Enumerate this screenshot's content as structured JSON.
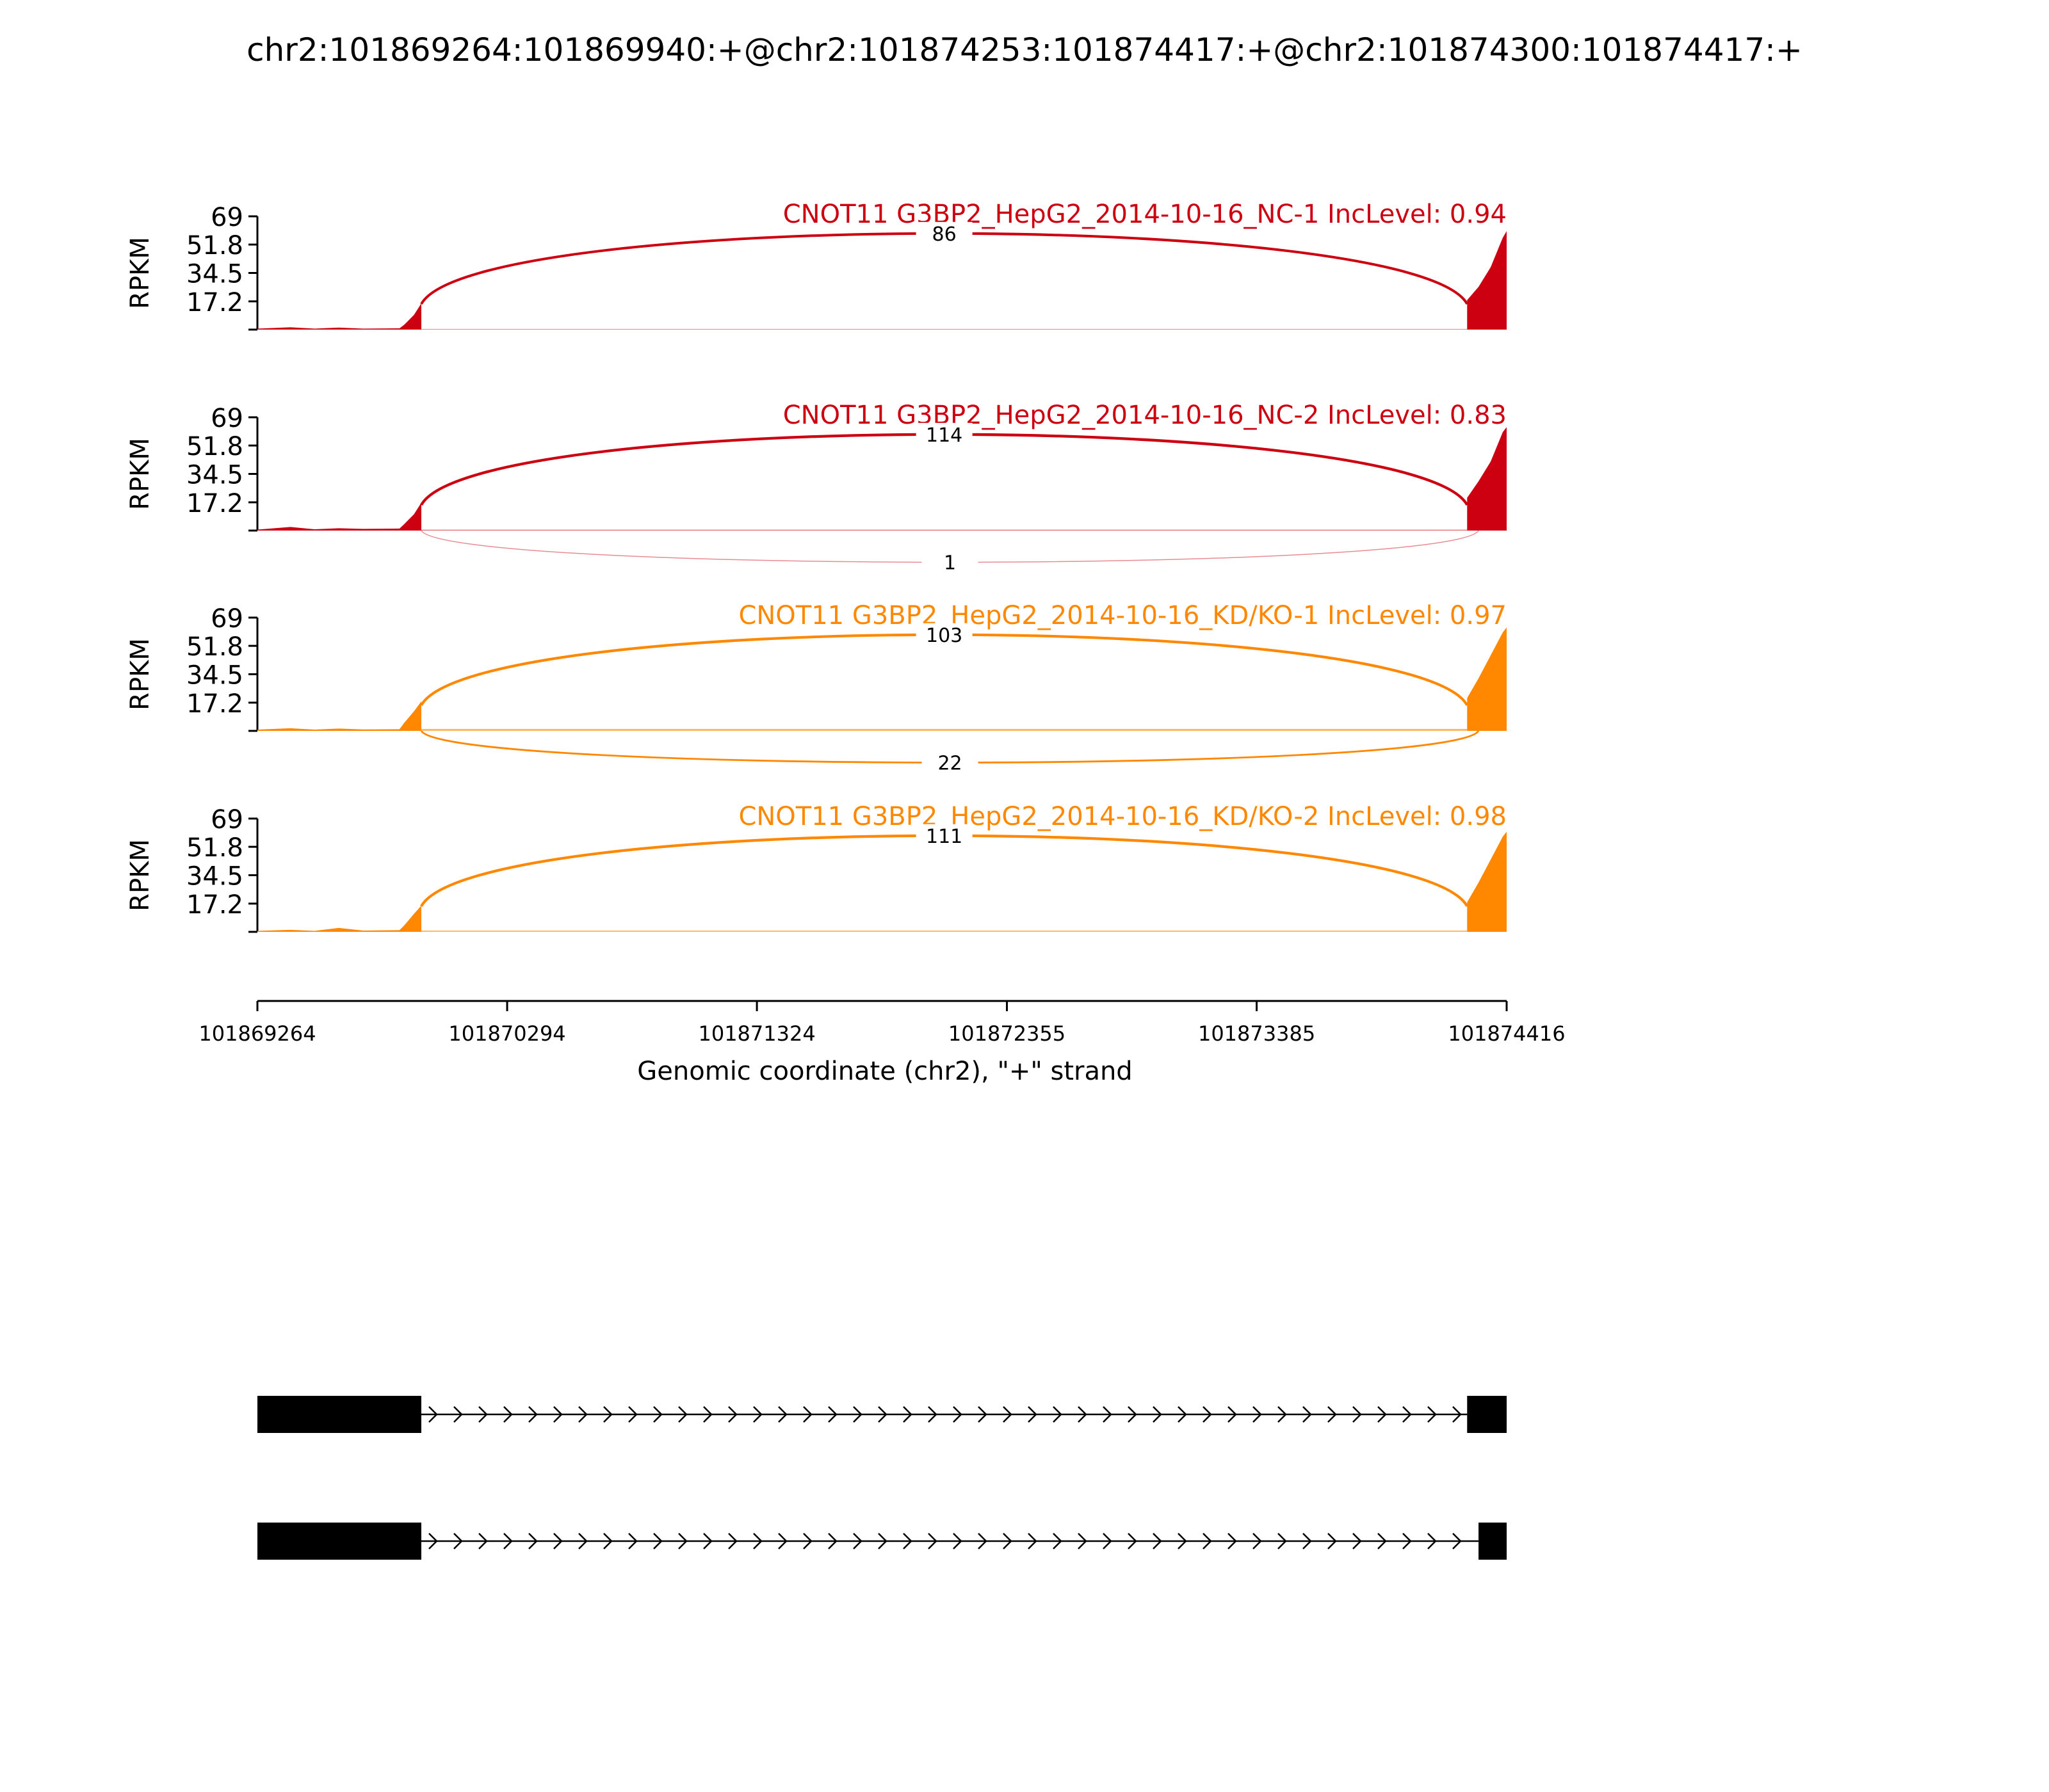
{
  "title": "chr2:101869264:101869940:+@chr2:101874253:101874417:+@chr2:101874300:101874417:+",
  "colors": {
    "nc": "#cc0011",
    "kd": "#ff8800",
    "axis": "#000000",
    "gene": "#000000"
  },
  "chart_data": {
    "type": "area",
    "ylabel": "RPKM",
    "xlabel": "Genomic coordinate (chr2), \"+\" strand",
    "ylim": [
      0,
      69
    ],
    "yticks": [
      {
        "value": 17.2,
        "label": "17.2"
      },
      {
        "value": 34.5,
        "label": "34.5"
      },
      {
        "value": 51.8,
        "label": "51.8"
      },
      {
        "value": 69,
        "label": "69"
      }
    ],
    "xlim": [
      101869264,
      101874416
    ],
    "xticks": [
      {
        "value": 101869264,
        "label": "101869264"
      },
      {
        "value": 101870294,
        "label": "101870294"
      },
      {
        "value": 101871324,
        "label": "101871324"
      },
      {
        "value": 101872355,
        "label": "101872355"
      },
      {
        "value": 101873385,
        "label": "101873385"
      },
      {
        "value": 101874416,
        "label": "101874416"
      }
    ],
    "tracks": [
      {
        "label": "CNOT11 G3BP2_HepG2_2014-10-16_NC-1 IncLevel: 0.94",
        "color_key": "nc",
        "junctions": [
          {
            "count": 86,
            "label": "86",
            "side": "above",
            "start": 101869940,
            "end": 101874253
          }
        ],
        "coverage": {
          "left_peak": [
            [
              101869264,
              0.6
            ],
            [
              101869400,
              1.4
            ],
            [
              101869500,
              0.6
            ],
            [
              101869600,
              1.2
            ],
            [
              101869700,
              0.6
            ],
            [
              101869850,
              0.8
            ],
            [
              101869870,
              3
            ],
            [
              101869910,
              9
            ],
            [
              101869940,
              16
            ]
          ],
          "right_peak": [
            [
              101874253,
              18
            ],
            [
              101874300,
              26
            ],
            [
              101874350,
              38
            ],
            [
              101874400,
              56
            ],
            [
              101874416,
              60
            ]
          ],
          "intron_level": 0.3
        }
      },
      {
        "label": "CNOT11 G3BP2_HepG2_2014-10-16_NC-2 IncLevel: 0.83",
        "color_key": "nc",
        "junctions": [
          {
            "count": 114,
            "label": "114",
            "side": "above",
            "start": 101869940,
            "end": 101874253
          },
          {
            "count": 1,
            "label": "1",
            "side": "below",
            "start": 101869940,
            "end": 101874300
          }
        ],
        "coverage": {
          "left_peak": [
            [
              101869264,
              0.6
            ],
            [
              101869400,
              2.2
            ],
            [
              101869500,
              0.8
            ],
            [
              101869600,
              1.4
            ],
            [
              101869700,
              1.0
            ],
            [
              101869850,
              1.2
            ],
            [
              101869870,
              4
            ],
            [
              101869910,
              10
            ],
            [
              101869940,
              17
            ]
          ],
          "right_peak": [
            [
              101874253,
              20
            ],
            [
              101874300,
              30
            ],
            [
              101874350,
              42
            ],
            [
              101874400,
              60
            ],
            [
              101874416,
              63
            ]
          ],
          "intron_level": 0.5
        }
      },
      {
        "label": "CNOT11 G3BP2_HepG2_2014-10-16_KD/KO-1 IncLevel: 0.97",
        "color_key": "kd",
        "junctions": [
          {
            "count": 103,
            "label": "103",
            "side": "above",
            "start": 101869940,
            "end": 101874253
          },
          {
            "count": 22,
            "label": "22",
            "side": "below",
            "start": 101869940,
            "end": 101874300
          }
        ],
        "coverage": {
          "left_peak": [
            [
              101869264,
              0.8
            ],
            [
              101869400,
              1.6
            ],
            [
              101869500,
              0.8
            ],
            [
              101869600,
              1.4
            ],
            [
              101869700,
              0.9
            ],
            [
              101869850,
              1.0
            ],
            [
              101869870,
              5
            ],
            [
              101869910,
              12
            ],
            [
              101869940,
              18
            ]
          ],
          "right_peak": [
            [
              101874253,
              20
            ],
            [
              101874300,
              32
            ],
            [
              101874350,
              46
            ],
            [
              101874400,
              60
            ],
            [
              101874416,
              63
            ]
          ],
          "intron_level": 1.2
        }
      },
      {
        "label": "CNOT11 G3BP2_HepG2_2014-10-16_KD/KO-2 IncLevel: 0.98",
        "color_key": "kd",
        "junctions": [
          {
            "count": 111,
            "label": "111",
            "side": "above",
            "start": 101869940,
            "end": 101874253
          }
        ],
        "coverage": {
          "left_peak": [
            [
              101869264,
              0.6
            ],
            [
              101869400,
              1.2
            ],
            [
              101869500,
              0.6
            ],
            [
              101869600,
              2.4
            ],
            [
              101869700,
              0.8
            ],
            [
              101869850,
              1.0
            ],
            [
              101869870,
              4
            ],
            [
              101869910,
              11
            ],
            [
              101869940,
              16
            ]
          ],
          "right_peak": [
            [
              101874253,
              18
            ],
            [
              101874300,
              30
            ],
            [
              101874350,
              44
            ],
            [
              101874400,
              58
            ],
            [
              101874416,
              61
            ]
          ],
          "intron_level": 0.8
        }
      }
    ],
    "isoforms": [
      {
        "exons": [
          [
            101869264,
            101869940
          ],
          [
            101874253,
            101874416
          ]
        ]
      },
      {
        "exons": [
          [
            101869264,
            101869940
          ],
          [
            101874300,
            101874416
          ]
        ]
      }
    ]
  }
}
